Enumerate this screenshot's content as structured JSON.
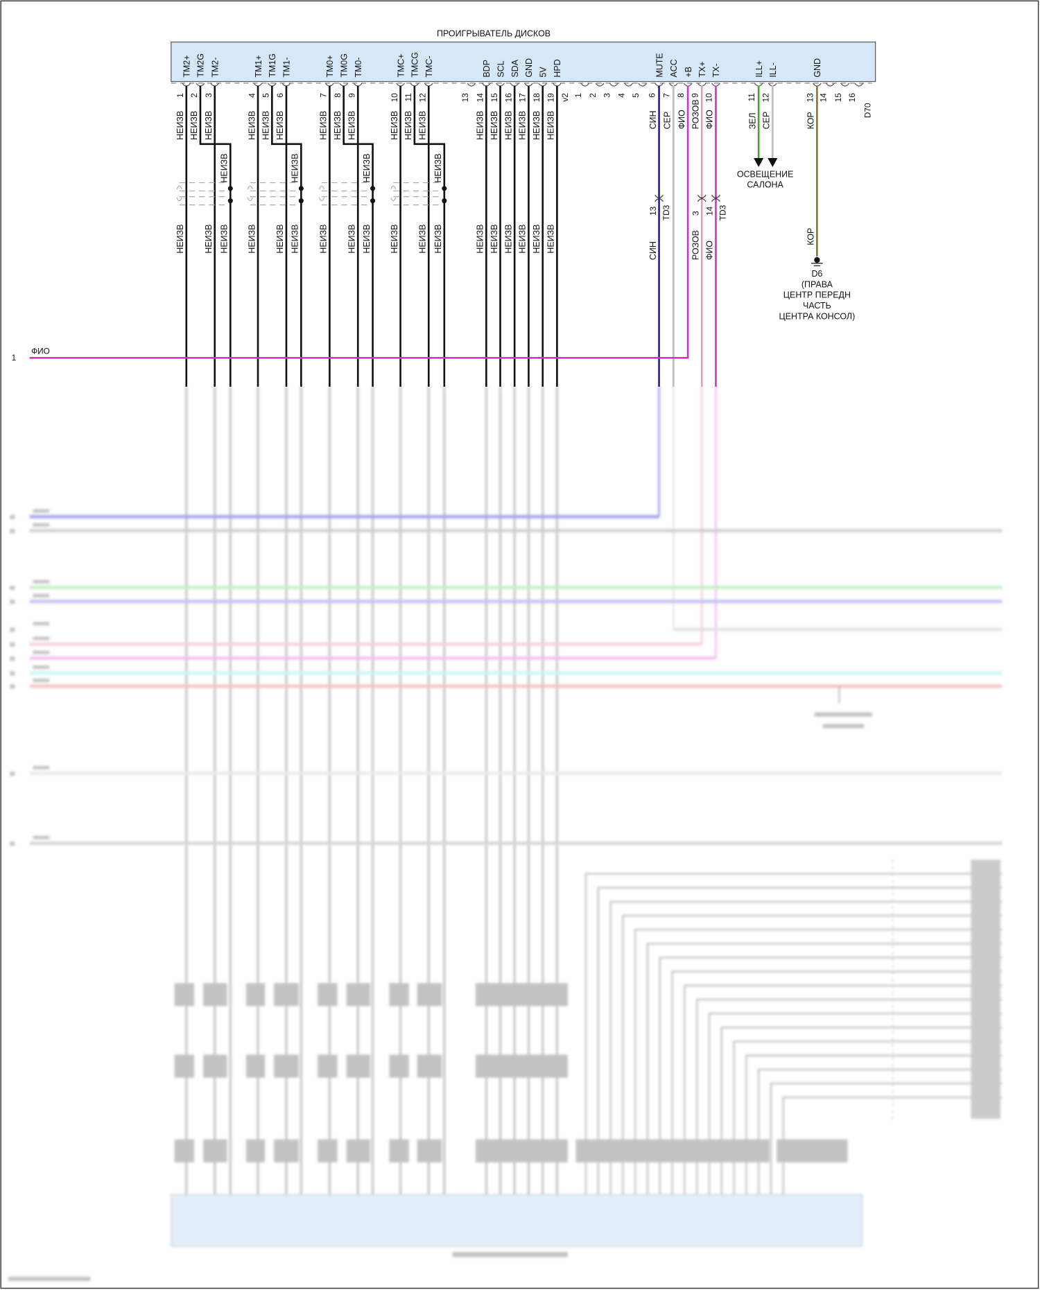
{
  "connector": {
    "title": "ПРОИГРЫВАТЕЛЬ ДИСКОВ",
    "code": "D70",
    "suffix": "v2",
    "left_pins": [
      {
        "num": "1",
        "signal": "TM2+",
        "wire": "НЕИЗВ"
      },
      {
        "num": "2",
        "signal": "TM2G",
        "wire": "НЕИЗВ"
      },
      {
        "num": "3",
        "signal": "TM2-",
        "wire": "НЕИЗВ"
      },
      {
        "num": "4",
        "signal": "TM1+",
        "wire": "НЕИЗВ"
      },
      {
        "num": "5",
        "signal": "TM1G",
        "wire": "НЕИЗВ"
      },
      {
        "num": "6",
        "signal": "TM1-",
        "wire": "НЕИЗВ"
      },
      {
        "num": "7",
        "signal": "TM0+",
        "wire": "НЕИЗВ"
      },
      {
        "num": "8",
        "signal": "TM0G",
        "wire": "НЕИЗВ"
      },
      {
        "num": "9",
        "signal": "TM0-",
        "wire": "НЕИЗВ"
      },
      {
        "num": "10",
        "signal": "TMC+",
        "wire": "НЕИЗВ"
      },
      {
        "num": "11",
        "signal": "TMCG",
        "wire": "НЕИЗВ"
      },
      {
        "num": "12",
        "signal": "TMC-",
        "wire": "НЕИЗВ"
      },
      {
        "num": "13",
        "signal": "",
        "wire": ""
      },
      {
        "num": "14",
        "signal": "BDP",
        "wire": "НЕИЗВ"
      },
      {
        "num": "15",
        "signal": "SCL",
        "wire": "НЕИЗВ"
      },
      {
        "num": "16",
        "signal": "SDA",
        "wire": "НЕИЗВ"
      },
      {
        "num": "17",
        "signal": "GND",
        "wire": "НЕИЗВ"
      },
      {
        "num": "18",
        "signal": "5V",
        "wire": "НЕИЗВ"
      },
      {
        "num": "19",
        "signal": "HPD",
        "wire": "НЕИЗВ"
      }
    ],
    "right_pins": [
      {
        "num": "1",
        "signal": "",
        "wire": ""
      },
      {
        "num": "2",
        "signal": "",
        "wire": ""
      },
      {
        "num": "3",
        "signal": "",
        "wire": ""
      },
      {
        "num": "4",
        "signal": "",
        "wire": ""
      },
      {
        "num": "5",
        "signal": "",
        "wire": ""
      },
      {
        "num": "6",
        "signal": "MUTE",
        "wire": "СИН"
      },
      {
        "num": "7",
        "signal": "ACC",
        "wire": "СЕР"
      },
      {
        "num": "8",
        "signal": "+B",
        "wire": "ФИО"
      },
      {
        "num": "9",
        "signal": "TX+",
        "wire": "РОЗОВ"
      },
      {
        "num": "10",
        "signal": "TX-",
        "wire": "ФИО"
      },
      {
        "num": "11",
        "signal": "ILL+",
        "wire": "ЗЕЛ"
      },
      {
        "num": "12",
        "signal": "ILL-",
        "wire": "СЕР"
      },
      {
        "num": "13",
        "signal": "GND",
        "wire": "КОР"
      },
      {
        "num": "14",
        "signal": "",
        "wire": ""
      },
      {
        "num": "15",
        "signal": "",
        "wire": ""
      },
      {
        "num": "16",
        "signal": "",
        "wire": ""
      }
    ]
  },
  "wire_colors": {
    "НЕИЗВ": "#111111",
    "СИН": "#1c1ca8",
    "СЕР": "#bdbdbd",
    "ФИО": "#d42fd4",
    "РОЗОВ": "#e39ab5",
    "ЗЕЛ": "#3aa82a",
    "КОР": "#7d6a1e"
  },
  "inline_connector": {
    "code": "TD3",
    "pins": [
      {
        "signal": "MUTE",
        "num": "13",
        "wire_after": "СИН"
      },
      {
        "signal": "TX+",
        "num": "3",
        "wire_after": "РОЗОВ"
      },
      {
        "signal": "TX-",
        "num": "14",
        "wire_after": "ФИО"
      }
    ]
  },
  "interior_light": {
    "label_lines": [
      "ОСВЕЩЕНИЕ",
      "САЛОНА"
    ]
  },
  "ground": {
    "code": "D6",
    "label_lines": [
      "(ПРАВА",
      "ЦЕНТР ПЕРЕДН",
      "ЧАСТЬ",
      "ЦЕНТРА КОНСОЛ)"
    ],
    "wire_after": "КОР"
  },
  "splice_left": {
    "num": "1",
    "wire": "ФИО"
  }
}
